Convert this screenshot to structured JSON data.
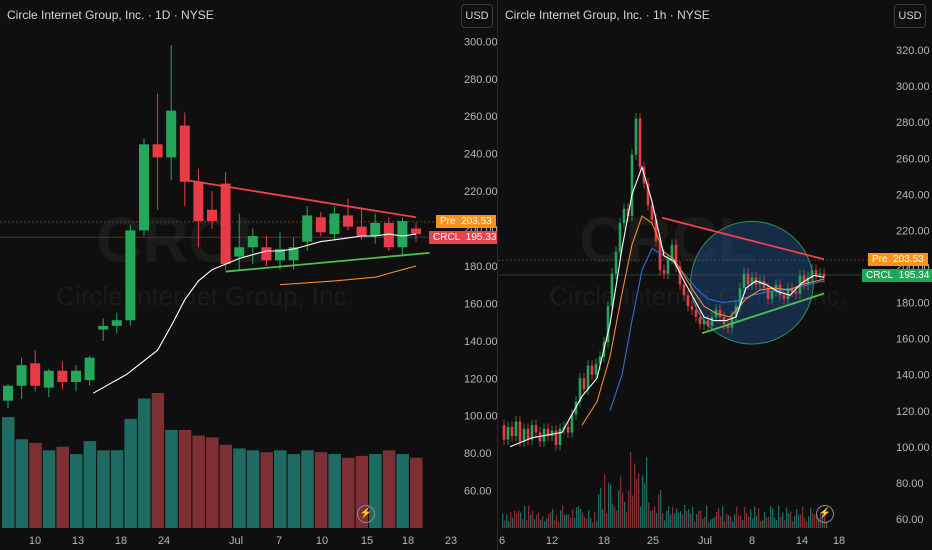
{
  "colors": {
    "background": "#0f0f0f",
    "up": "#26a65b",
    "down": "#e83b48",
    "vol_up": "#1d6b63",
    "vol_down": "#7d2f33",
    "ma_fast": "#ffffff",
    "ma_slow": "#f28a2e",
    "ma_long": "#2f6fd8",
    "resistance": "#f0414f",
    "support": "#4cc14f",
    "pre_tag": "#f7931a",
    "crcl_tag_left": "#e8434f",
    "crcl_tag_right": "#22a65a",
    "circle_fill": "#1f4f8a"
  },
  "watermark": {
    "ticker": "CRCL",
    "company": "Circle Internet Group, Inc."
  },
  "left": {
    "title": "Circle Internet Group, Inc. · 1D · NYSE",
    "currency_button": "USD",
    "pre_label": "Pre",
    "pre_value": "203.53",
    "symbol_label": "CRCL",
    "symbol_value": "195.33",
    "icon": "lightning-icon"
  },
  "right": {
    "title": "Circle Internet Group, Inc. · 1h · NYSE",
    "currency_button": "USD",
    "pre_label": "Pre",
    "pre_value": "203.53",
    "symbol_label": "CRCL",
    "symbol_value": "195.34",
    "icon": "lightning-icon"
  },
  "chart_data": [
    {
      "type": "candlestick",
      "title": "Circle Internet Group, Inc. · 1D · NYSE",
      "ylim": [
        40,
        305
      ],
      "y_ticks": [
        "60.00",
        "80.00",
        "100.00",
        "120.00",
        "140.00",
        "160.00",
        "180.00",
        "200.00",
        "220.00",
        "240.00",
        "260.00",
        "280.00",
        "300.00"
      ],
      "x_ticks": [
        "10",
        "13",
        "18",
        "24",
        "Jul",
        "7",
        "10",
        "15",
        "18",
        "23"
      ],
      "candles": [
        {
          "o": 108,
          "h": 117,
          "l": 104,
          "c": 116
        },
        {
          "o": 116,
          "h": 131,
          "l": 109,
          "c": 127
        },
        {
          "o": 128,
          "h": 135,
          "l": 113,
          "c": 116
        },
        {
          "o": 115,
          "h": 125,
          "l": 110,
          "c": 124
        },
        {
          "o": 124,
          "h": 129,
          "l": 114,
          "c": 118
        },
        {
          "o": 118,
          "h": 127,
          "l": 113,
          "c": 124
        },
        {
          "o": 119,
          "h": 132,
          "l": 116,
          "c": 131
        },
        {
          "o": 146,
          "h": 152,
          "l": 140,
          "c": 148
        },
        {
          "o": 148,
          "h": 155,
          "l": 144,
          "c": 151
        },
        {
          "o": 151,
          "h": 202,
          "l": 148,
          "c": 199
        },
        {
          "o": 199,
          "h": 248,
          "l": 196,
          "c": 245
        },
        {
          "o": 245,
          "h": 272,
          "l": 210,
          "c": 238
        },
        {
          "o": 238,
          "h": 298,
          "l": 226,
          "c": 263
        },
        {
          "o": 255,
          "h": 262,
          "l": 212,
          "c": 225
        },
        {
          "o": 225,
          "h": 232,
          "l": 190,
          "c": 204
        },
        {
          "o": 210,
          "h": 220,
          "l": 200,
          "c": 204
        },
        {
          "o": 224,
          "h": 230,
          "l": 178,
          "c": 181
        },
        {
          "o": 185,
          "h": 208,
          "l": 178,
          "c": 190
        },
        {
          "o": 190,
          "h": 200,
          "l": 181,
          "c": 196
        },
        {
          "o": 190,
          "h": 196,
          "l": 180,
          "c": 183
        },
        {
          "o": 183,
          "h": 198,
          "l": 178,
          "c": 189
        },
        {
          "o": 183,
          "h": 195,
          "l": 178,
          "c": 190
        },
        {
          "o": 193,
          "h": 212,
          "l": 188,
          "c": 207
        },
        {
          "o": 206,
          "h": 209,
          "l": 196,
          "c": 198
        },
        {
          "o": 197,
          "h": 212,
          "l": 194,
          "c": 208
        },
        {
          "o": 207,
          "h": 216,
          "l": 199,
          "c": 201
        },
        {
          "o": 201,
          "h": 211,
          "l": 194,
          "c": 196
        },
        {
          "o": 196,
          "h": 208,
          "l": 192,
          "c": 203
        },
        {
          "o": 203,
          "h": 206,
          "l": 188,
          "c": 190
        },
        {
          "o": 190,
          "h": 206,
          "l": 186,
          "c": 204
        },
        {
          "o": 200,
          "h": 203,
          "l": 193,
          "c": 197
        }
      ],
      "volume": [
        60,
        48,
        46,
        42,
        44,
        40,
        47,
        42,
        42,
        59,
        70,
        73,
        53,
        53,
        50,
        49,
        45,
        43,
        42,
        41,
        42,
        40,
        42,
        41,
        40,
        38,
        39,
        40,
        42,
        40,
        38
      ],
      "ma_fast": [
        null,
        null,
        null,
        null,
        null,
        null,
        null,
        null,
        null,
        null,
        null,
        135,
        148,
        162,
        172,
        178,
        181,
        184,
        186,
        188,
        188,
        189,
        191,
        193,
        194,
        195,
        196,
        196,
        197,
        196,
        197
      ],
      "ma_slow": [
        null,
        null,
        null,
        null,
        null,
        null,
        null,
        null,
        null,
        null,
        null,
        null,
        null,
        null,
        null,
        null,
        null,
        null,
        null,
        null,
        null,
        null,
        null,
        null,
        null,
        null,
        null,
        174,
        176,
        178,
        180
      ],
      "resistance": {
        "from": [
          13,
          226
        ],
        "to": [
          30,
          206
        ]
      },
      "support": {
        "from": [
          16,
          177
        ],
        "to": [
          31,
          187
        ]
      },
      "reference_lines": [
        {
          "label": "Pre",
          "value": 203.53
        },
        {
          "label": "CRCL",
          "value": 195.33
        }
      ]
    },
    {
      "type": "candlestick",
      "title": "Circle Internet Group, Inc. · 1h · NYSE",
      "ylim": [
        55,
        330
      ],
      "y_ticks": [
        "60.00",
        "80.00",
        "100.00",
        "120.00",
        "140.00",
        "160.00",
        "180.00",
        "200.00",
        "220.00",
        "240.00",
        "260.00",
        "280.00",
        "300.00",
        "320.00"
      ],
      "x_ticks": [
        "6",
        "12",
        "18",
        "25",
        "Jul",
        "8",
        "14",
        "18"
      ],
      "close_path": [
        [
          0,
          112
        ],
        [
          4,
          104
        ],
        [
          8,
          111
        ],
        [
          12,
          106
        ],
        [
          16,
          114
        ],
        [
          20,
          103
        ],
        [
          24,
          110
        ],
        [
          28,
          104
        ],
        [
          32,
          112
        ],
        [
          36,
          108
        ],
        [
          40,
          103
        ],
        [
          44,
          110
        ],
        [
          48,
          106
        ],
        [
          52,
          109
        ],
        [
          56,
          101
        ],
        [
          60,
          110
        ],
        [
          64,
          111
        ],
        [
          68,
          108
        ],
        [
          72,
          118
        ],
        [
          76,
          125
        ],
        [
          80,
          138
        ],
        [
          84,
          132
        ],
        [
          88,
          145
        ],
        [
          92,
          140
        ],
        [
          96,
          146
        ],
        [
          100,
          150
        ],
        [
          104,
          158
        ],
        [
          108,
          178
        ],
        [
          112,
          196
        ],
        [
          116,
          208
        ],
        [
          120,
          224
        ],
        [
          124,
          232
        ],
        [
          128,
          228
        ],
        [
          132,
          262
        ],
        [
          136,
          282
        ],
        [
          140,
          255
        ],
        [
          144,
          246
        ],
        [
          148,
          234
        ],
        [
          152,
          226
        ],
        [
          156,
          214
        ],
        [
          160,
          198
        ],
        [
          164,
          196
        ],
        [
          168,
          204
        ],
        [
          172,
          212
        ],
        [
          176,
          200
        ],
        [
          180,
          190
        ],
        [
          184,
          184
        ],
        [
          188,
          178
        ],
        [
          192,
          176
        ],
        [
          196,
          172
        ],
        [
          200,
          168
        ],
        [
          204,
          170
        ],
        [
          208,
          167
        ],
        [
          212,
          172
        ],
        [
          216,
          176
        ],
        [
          220,
          172
        ],
        [
          224,
          168
        ],
        [
          228,
          166
        ],
        [
          232,
          172
        ],
        [
          236,
          178
        ],
        [
          240,
          188
        ],
        [
          244,
          196
        ],
        [
          248,
          190
        ],
        [
          252,
          194
        ],
        [
          256,
          190
        ],
        [
          260,
          192
        ],
        [
          264,
          188
        ],
        [
          268,
          182
        ],
        [
          272,
          186
        ],
        [
          276,
          190
        ],
        [
          280,
          184
        ],
        [
          284,
          182
        ],
        [
          288,
          188
        ],
        [
          292,
          186
        ],
        [
          296,
          185
        ],
        [
          300,
          195
        ],
        [
          304,
          190
        ],
        [
          308,
          194
        ],
        [
          312,
          198
        ],
        [
          316,
          195
        ],
        [
          320,
          196
        ],
        [
          324,
          194
        ]
      ],
      "ma_fast": [
        [
          8,
          100
        ],
        [
          30,
          105
        ],
        [
          60,
          108
        ],
        [
          80,
          128
        ],
        [
          95,
          138
        ],
        [
          108,
          168
        ],
        [
          120,
          210
        ],
        [
          130,
          240
        ],
        [
          140,
          255
        ],
        [
          150,
          236
        ],
        [
          162,
          206
        ],
        [
          172,
          203
        ],
        [
          182,
          192
        ],
        [
          192,
          182
        ],
        [
          202,
          172
        ],
        [
          212,
          170
        ],
        [
          224,
          170
        ],
        [
          234,
          172
        ],
        [
          244,
          188
        ],
        [
          254,
          192
        ],
        [
          264,
          190
        ],
        [
          276,
          186
        ],
        [
          288,
          184
        ],
        [
          300,
          191
        ],
        [
          312,
          195
        ],
        [
          322,
          194
        ]
      ],
      "ma_slow": [
        [
          80,
          112
        ],
        [
          95,
          125
        ],
        [
          108,
          150
        ],
        [
          120,
          185
        ],
        [
          130,
          212
        ],
        [
          140,
          228
        ],
        [
          150,
          224
        ],
        [
          162,
          208
        ],
        [
          172,
          204
        ],
        [
          182,
          195
        ],
        [
          192,
          186
        ],
        [
          202,
          178
        ],
        [
          214,
          174
        ],
        [
          228,
          172
        ],
        [
          244,
          182
        ],
        [
          258,
          187
        ],
        [
          272,
          188
        ],
        [
          288,
          187
        ],
        [
          300,
          190
        ],
        [
          322,
          193
        ]
      ],
      "ma_long": [
        [
          108,
          120
        ],
        [
          120,
          140
        ],
        [
          130,
          170
        ],
        [
          140,
          198
        ],
        [
          150,
          210
        ],
        [
          162,
          206
        ],
        [
          172,
          202
        ],
        [
          182,
          196
        ],
        [
          194,
          188
        ],
        [
          206,
          182
        ],
        [
          220,
          180
        ],
        [
          236,
          181
        ],
        [
          250,
          184
        ],
        [
          266,
          186
        ],
        [
          282,
          187
        ],
        [
          300,
          189
        ],
        [
          322,
          192
        ]
      ],
      "resistance": {
        "from": [
          160,
          227
        ],
        "to": [
          322,
          204
        ]
      },
      "support": {
        "from": [
          200,
          163
        ],
        "to": [
          322,
          185
        ]
      },
      "highlight_circle": {
        "cx": 250,
        "cy": 191,
        "r_price": 34
      },
      "reference_lines": [
        {
          "label": "Pre",
          "value": 203.53
        },
        {
          "label": "CRCL",
          "value": 195.34
        }
      ]
    }
  ]
}
